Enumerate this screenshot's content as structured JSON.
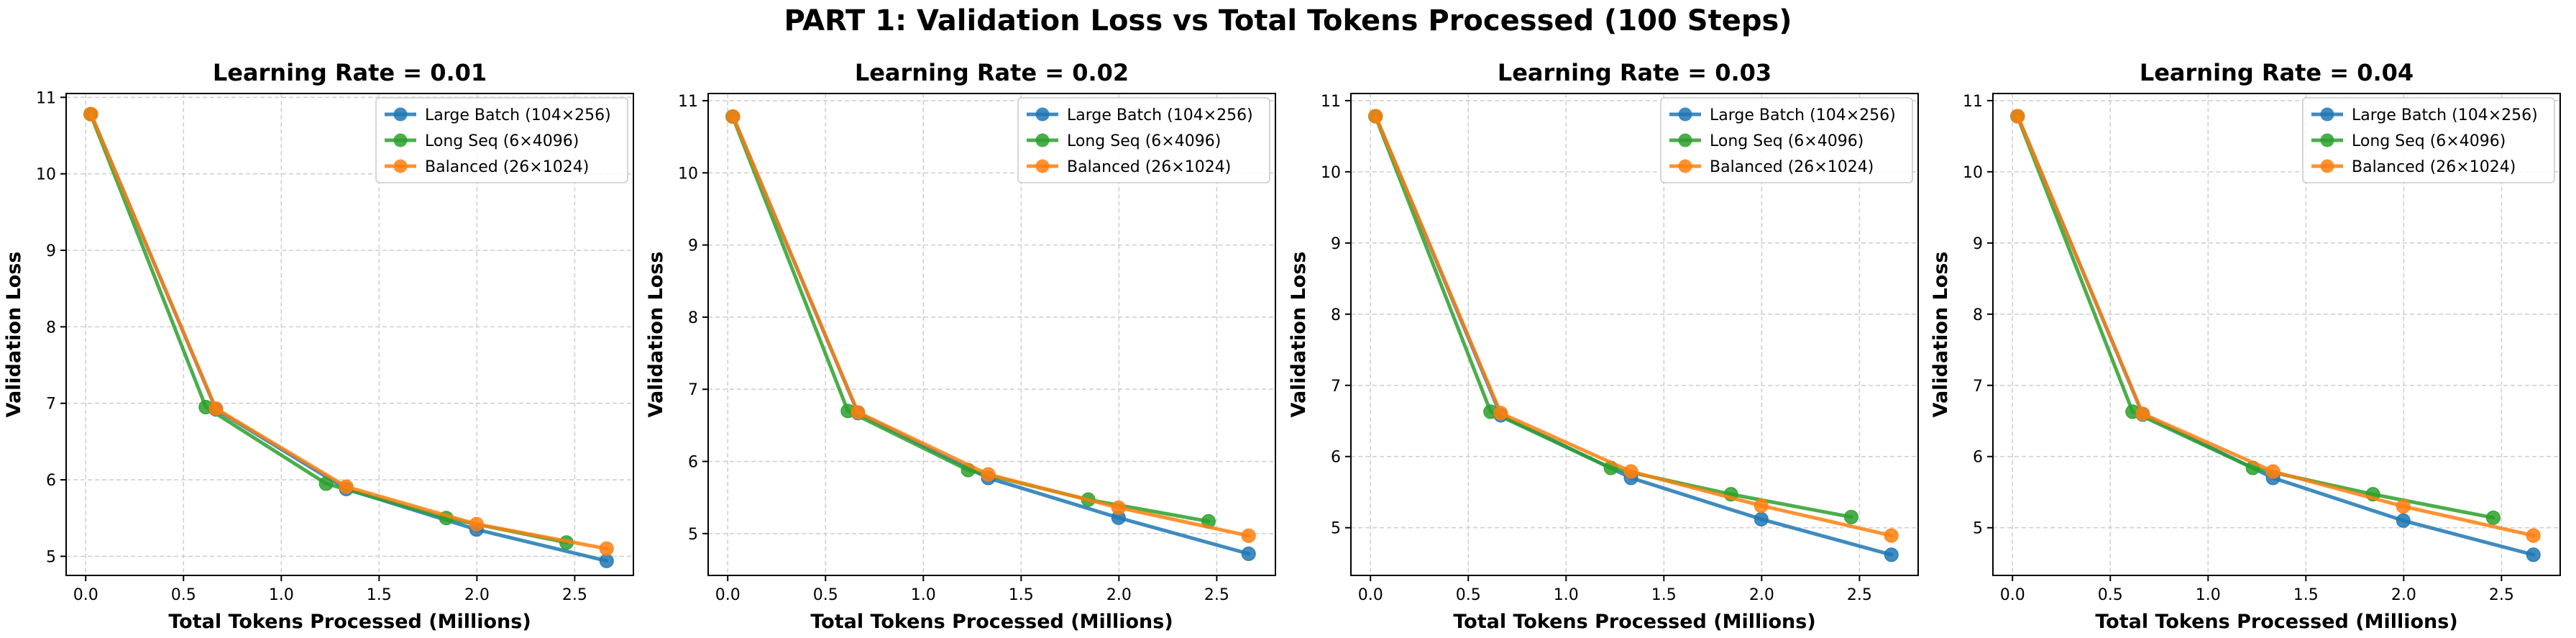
{
  "figure": {
    "title": "PART 1: Validation Loss vs Total Tokens Processed (100 Steps)"
  },
  "chart_data": [
    {
      "type": "line",
      "title": "Learning Rate = 0.01",
      "xlabel": "Total Tokens Processed (Millions)",
      "ylabel": "Validation Loss",
      "xlim": [
        -0.1,
        2.8
      ],
      "ylim": [
        4.75,
        11.05
      ],
      "xticks": [
        0.0,
        0.5,
        1.0,
        1.5,
        2.0,
        2.5
      ],
      "xtick_labels": [
        "0.0",
        "0.5",
        "1.0",
        "1.5",
        "2.0",
        "2.5"
      ],
      "yticks": [
        5,
        6,
        7,
        8,
        9,
        10,
        11
      ],
      "ytick_labels": [
        "5",
        "6",
        "7",
        "8",
        "9",
        "10",
        "11"
      ],
      "grid": true,
      "legend_position": "top-right",
      "series": [
        {
          "name": "Large Batch (104×256)",
          "color": "#1f77b4",
          "x": [
            0.027,
            0.666,
            1.332,
            1.998,
            2.663
          ],
          "y": [
            10.78,
            6.92,
            5.88,
            5.35,
            4.94
          ]
        },
        {
          "name": "Long Seq (6×4096)",
          "color": "#2ca02c",
          "x": [
            0.025,
            0.614,
            1.229,
            1.843,
            2.458
          ],
          "y": [
            10.78,
            6.95,
            5.95,
            5.5,
            5.18
          ]
        },
        {
          "name": "Balanced (26×1024)",
          "color": "#ff7f0e",
          "x": [
            0.027,
            0.666,
            1.332,
            1.998,
            2.663
          ],
          "y": [
            10.78,
            6.93,
            5.91,
            5.42,
            5.1
          ]
        }
      ]
    },
    {
      "type": "line",
      "title": "Learning Rate = 0.02",
      "xlabel": "Total Tokens Processed (Millions)",
      "ylabel": "Validation Loss",
      "xlim": [
        -0.1,
        2.8
      ],
      "ylim": [
        4.42,
        11.1
      ],
      "xticks": [
        0.0,
        0.5,
        1.0,
        1.5,
        2.0,
        2.5
      ],
      "xtick_labels": [
        "0.0",
        "0.5",
        "1.0",
        "1.5",
        "2.0",
        "2.5"
      ],
      "yticks": [
        5,
        6,
        7,
        8,
        9,
        10,
        11
      ],
      "ytick_labels": [
        "5",
        "6",
        "7",
        "8",
        "9",
        "10",
        "11"
      ],
      "grid": true,
      "legend_position": "top-right",
      "series": [
        {
          "name": "Large Batch (104×256)",
          "color": "#1f77b4",
          "x": [
            0.027,
            0.666,
            1.332,
            1.998,
            2.663
          ],
          "y": [
            10.78,
            6.67,
            5.77,
            5.22,
            4.72
          ]
        },
        {
          "name": "Long Seq (6×4096)",
          "color": "#2ca02c",
          "x": [
            0.025,
            0.614,
            1.229,
            1.843,
            2.458
          ],
          "y": [
            10.78,
            6.7,
            5.88,
            5.47,
            5.17
          ]
        },
        {
          "name": "Balanced (26×1024)",
          "color": "#ff7f0e",
          "x": [
            0.027,
            0.666,
            1.332,
            1.998,
            2.663
          ],
          "y": [
            10.78,
            6.68,
            5.82,
            5.36,
            4.97
          ]
        }
      ]
    },
    {
      "type": "line",
      "title": "Learning Rate = 0.03",
      "xlabel": "Total Tokens Processed (Millions)",
      "ylabel": "Validation Loss",
      "xlim": [
        -0.1,
        2.8
      ],
      "ylim": [
        4.33,
        11.1
      ],
      "xticks": [
        0.0,
        0.5,
        1.0,
        1.5,
        2.0,
        2.5
      ],
      "xtick_labels": [
        "0.0",
        "0.5",
        "1.0",
        "1.5",
        "2.0",
        "2.5"
      ],
      "yticks": [
        5,
        6,
        7,
        8,
        9,
        10,
        11
      ],
      "ytick_labels": [
        "5",
        "6",
        "7",
        "8",
        "9",
        "10",
        "11"
      ],
      "grid": true,
      "legend_position": "top-right",
      "series": [
        {
          "name": "Large Batch (104×256)",
          "color": "#1f77b4",
          "x": [
            0.027,
            0.666,
            1.332,
            1.998,
            2.663
          ],
          "y": [
            10.78,
            6.58,
            5.7,
            5.12,
            4.62
          ]
        },
        {
          "name": "Long Seq (6×4096)",
          "color": "#2ca02c",
          "x": [
            0.025,
            0.614,
            1.229,
            1.843,
            2.458
          ],
          "y": [
            10.78,
            6.63,
            5.84,
            5.47,
            5.15
          ]
        },
        {
          "name": "Balanced (26×1024)",
          "color": "#ff7f0e",
          "x": [
            0.027,
            0.666,
            1.332,
            1.998,
            2.663
          ],
          "y": [
            10.78,
            6.61,
            5.79,
            5.31,
            4.89
          ]
        }
      ]
    },
    {
      "type": "line",
      "title": "Learning Rate = 0.04",
      "xlabel": "Total Tokens Processed (Millions)",
      "ylabel": "Validation Loss",
      "xlim": [
        -0.1,
        2.8
      ],
      "ylim": [
        4.33,
        11.1
      ],
      "xticks": [
        0.0,
        0.5,
        1.0,
        1.5,
        2.0,
        2.5
      ],
      "xtick_labels": [
        "0.0",
        "0.5",
        "1.0",
        "1.5",
        "2.0",
        "2.5"
      ],
      "yticks": [
        5,
        6,
        7,
        8,
        9,
        10,
        11
      ],
      "ytick_labels": [
        "5",
        "6",
        "7",
        "8",
        "9",
        "10",
        "11"
      ],
      "grid": true,
      "legend_position": "top-right",
      "series": [
        {
          "name": "Large Batch (104×256)",
          "color": "#1f77b4",
          "x": [
            0.027,
            0.666,
            1.332,
            1.998,
            2.663
          ],
          "y": [
            10.78,
            6.59,
            5.7,
            5.1,
            4.62
          ]
        },
        {
          "name": "Long Seq (6×4096)",
          "color": "#2ca02c",
          "x": [
            0.025,
            0.614,
            1.229,
            1.843,
            2.458
          ],
          "y": [
            10.78,
            6.63,
            5.84,
            5.47,
            5.14
          ]
        },
        {
          "name": "Balanced (26×1024)",
          "color": "#ff7f0e",
          "x": [
            0.027,
            0.666,
            1.332,
            1.998,
            2.663
          ],
          "y": [
            10.78,
            6.6,
            5.79,
            5.3,
            4.89
          ]
        }
      ]
    }
  ]
}
